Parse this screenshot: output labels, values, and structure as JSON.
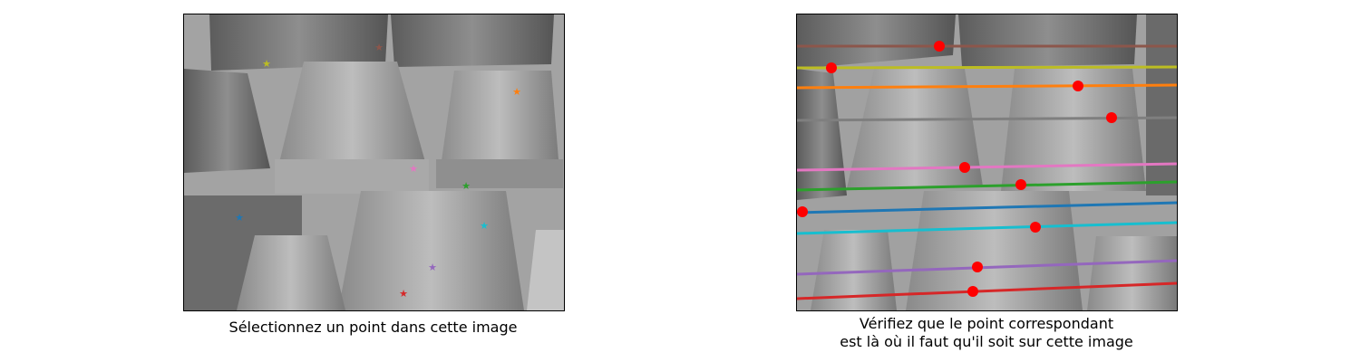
{
  "left_panel": {
    "caption": "Sélectionnez un point dans cette image"
  },
  "right_panel": {
    "caption_line1": "Vérifiez que le point correspondant",
    "caption_line2": "est là où il faut qu'il soit sur cette image"
  },
  "point_colors": {
    "brown": "#8c564b",
    "olive": "#bcbd22",
    "orange": "#ff7f0e",
    "gray": "#7f7f7f",
    "pink": "#e377c2",
    "green": "#2ca02c",
    "blue": "#1f77b4",
    "cyan": "#17becf",
    "purple": "#9467bd",
    "red": "#d62728"
  },
  "marker_color": "#ff0000",
  "point_count": 10
}
